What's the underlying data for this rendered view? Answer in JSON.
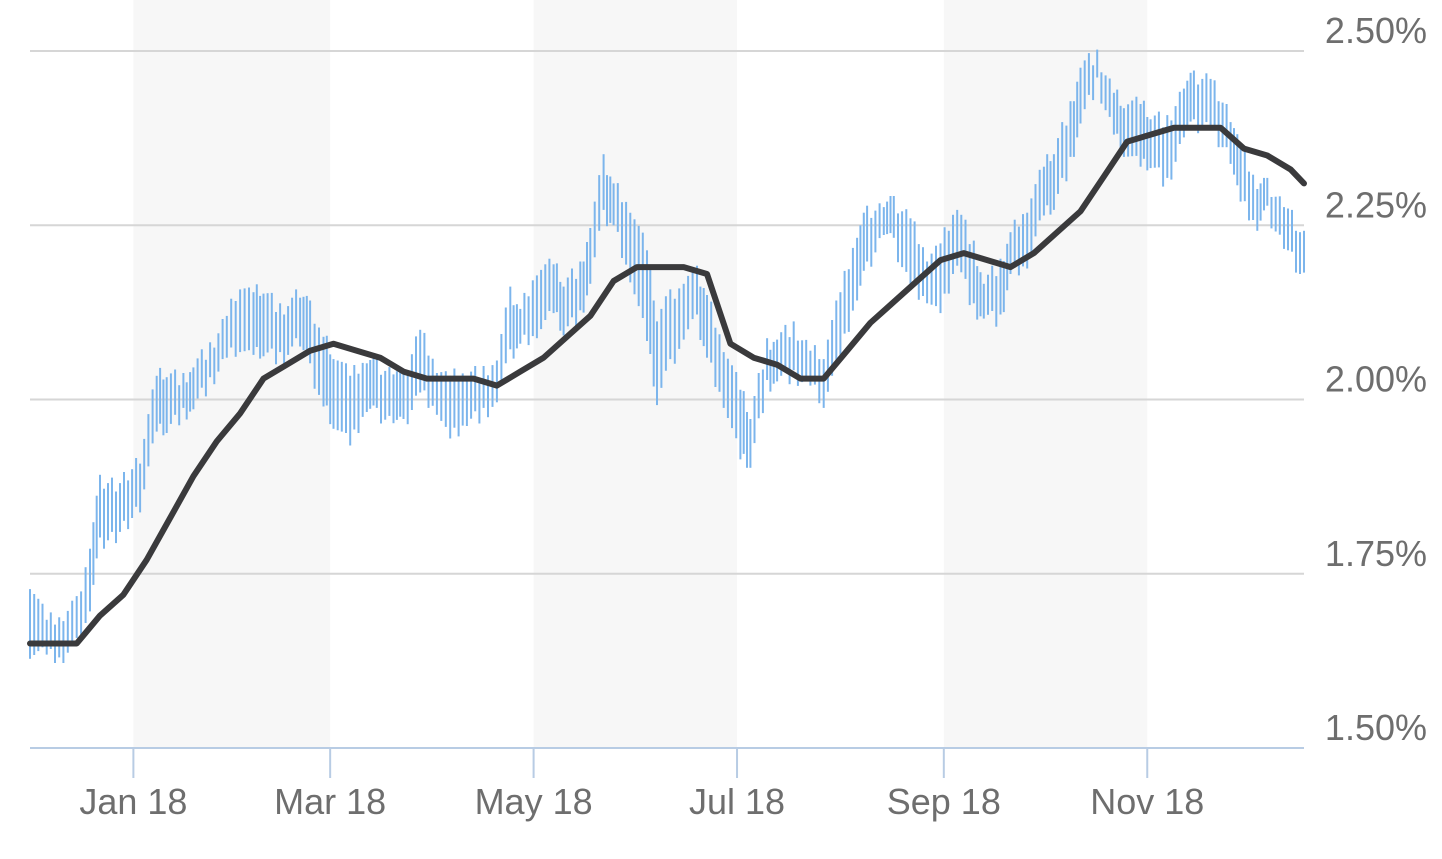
{
  "chart_data": {
    "type": "line",
    "xlabel": "",
    "ylabel": "",
    "x_range": [
      "2017-12-01",
      "2018-12-18"
    ],
    "ylim": [
      1.5,
      2.5
    ],
    "y_ticks": [
      {
        "value": 2.5,
        "label": "2.50%"
      },
      {
        "value": 2.25,
        "label": "2.25%"
      },
      {
        "value": 2.0,
        "label": "2.00%"
      },
      {
        "value": 1.75,
        "label": "1.75%"
      },
      {
        "value": 1.5,
        "label": "1.50%"
      }
    ],
    "x_ticks": [
      {
        "date": "2018-01-01",
        "label": "Jan 18"
      },
      {
        "date": "2018-03-01",
        "label": "Mar 18"
      },
      {
        "date": "2018-05-01",
        "label": "May 18"
      },
      {
        "date": "2018-07-01",
        "label": "Jul 18"
      },
      {
        "date": "2018-09-01",
        "label": "Sep 18"
      },
      {
        "date": "2018-11-01",
        "label": "Nov 18"
      }
    ],
    "shaded_bands": [
      {
        "start": "2018-01-01",
        "end": "2018-03-01"
      },
      {
        "start": "2018-05-01",
        "end": "2018-07-01"
      },
      {
        "start": "2018-09-01",
        "end": "2018-11-01"
      }
    ],
    "grid": true,
    "series": [
      {
        "kind": "daily-range",
        "color": "#7cb5ec",
        "points": [
          [
            "2017-12-01",
            1.64,
            1.74
          ],
          [
            "2017-12-06",
            1.63,
            1.68
          ],
          [
            "2017-12-11",
            1.63,
            1.69
          ],
          [
            "2017-12-15",
            1.65,
            1.71
          ],
          [
            "2017-12-19",
            1.7,
            1.79
          ],
          [
            "2017-12-22",
            1.79,
            1.88
          ],
          [
            "2017-12-28",
            1.81,
            1.88
          ],
          [
            "2018-01-03",
            1.85,
            1.92
          ],
          [
            "2018-01-08",
            1.95,
            2.03
          ],
          [
            "2018-01-11",
            1.96,
            2.04
          ],
          [
            "2018-01-16",
            1.98,
            2.03
          ],
          [
            "2018-01-19",
            1.99,
            2.05
          ],
          [
            "2018-01-24",
            2.02,
            2.07
          ],
          [
            "2018-01-29",
            2.06,
            2.12
          ],
          [
            "2018-02-02",
            2.08,
            2.17
          ],
          [
            "2018-02-06",
            2.06,
            2.15
          ],
          [
            "2018-02-09",
            2.07,
            2.16
          ],
          [
            "2018-02-14",
            2.06,
            2.13
          ],
          [
            "2018-02-20",
            2.08,
            2.15
          ],
          [
            "2018-02-23",
            2.04,
            2.13
          ],
          [
            "2018-02-27",
            1.99,
            2.09
          ],
          [
            "2018-03-02",
            1.97,
            2.07
          ],
          [
            "2018-03-07",
            1.93,
            2.03
          ],
          [
            "2018-03-12",
            1.99,
            2.06
          ],
          [
            "2018-03-15",
            1.98,
            2.05
          ],
          [
            "2018-03-20",
            1.97,
            2.04
          ],
          [
            "2018-03-23",
            1.96,
            2.03
          ],
          [
            "2018-03-28",
            2.01,
            2.1
          ],
          [
            "2018-04-02",
            1.99,
            2.05
          ],
          [
            "2018-04-06",
            1.94,
            2.03
          ],
          [
            "2018-04-11",
            1.97,
            2.04
          ],
          [
            "2018-04-16",
            1.98,
            2.04
          ],
          [
            "2018-04-20",
            2.0,
            2.06
          ],
          [
            "2018-04-24",
            2.06,
            2.15
          ],
          [
            "2018-04-27",
            2.08,
            2.13
          ],
          [
            "2018-05-02",
            2.1,
            2.19
          ],
          [
            "2018-05-07",
            2.12,
            2.19
          ],
          [
            "2018-05-10",
            2.1,
            2.17
          ],
          [
            "2018-05-15",
            2.12,
            2.19
          ],
          [
            "2018-05-18",
            2.17,
            2.25
          ],
          [
            "2018-05-22",
            2.26,
            2.34
          ],
          [
            "2018-05-25",
            2.25,
            2.31
          ],
          [
            "2018-05-30",
            2.18,
            2.28
          ],
          [
            "2018-06-04",
            2.08,
            2.21
          ],
          [
            "2018-06-07",
            2.0,
            2.12
          ],
          [
            "2018-06-11",
            2.05,
            2.15
          ],
          [
            "2018-06-15",
            2.09,
            2.17
          ],
          [
            "2018-06-19",
            2.11,
            2.18
          ],
          [
            "2018-06-22",
            2.06,
            2.15
          ],
          [
            "2018-06-27",
            2.0,
            2.08
          ],
          [
            "2018-07-02",
            1.91,
            2.01
          ],
          [
            "2018-07-05",
            1.91,
            1.98
          ],
          [
            "2018-07-10",
            2.02,
            2.08
          ],
          [
            "2018-07-13",
            2.03,
            2.09
          ],
          [
            "2018-07-18",
            2.03,
            2.1
          ],
          [
            "2018-07-23",
            2.02,
            2.07
          ],
          [
            "2018-07-27",
            2.0,
            2.07
          ],
          [
            "2018-08-01",
            2.06,
            2.15
          ],
          [
            "2018-08-06",
            2.15,
            2.24
          ],
          [
            "2018-08-09",
            2.19,
            2.27
          ],
          [
            "2018-08-14",
            2.24,
            2.28
          ],
          [
            "2018-08-17",
            2.22,
            2.28
          ],
          [
            "2018-08-22",
            2.16,
            2.26
          ],
          [
            "2018-08-27",
            2.15,
            2.21
          ],
          [
            "2018-08-31",
            2.12,
            2.22
          ],
          [
            "2018-09-05",
            2.2,
            2.28
          ],
          [
            "2018-09-10",
            2.13,
            2.22
          ],
          [
            "2018-09-13",
            2.12,
            2.17
          ],
          [
            "2018-09-18",
            2.11,
            2.19
          ],
          [
            "2018-09-21",
            2.18,
            2.24
          ],
          [
            "2018-09-26",
            2.2,
            2.28
          ],
          [
            "2018-10-01",
            2.26,
            2.33
          ],
          [
            "2018-10-04",
            2.28,
            2.36
          ],
          [
            "2018-10-09",
            2.34,
            2.42
          ],
          [
            "2018-10-12",
            2.4,
            2.48
          ],
          [
            "2018-10-17",
            2.45,
            2.49
          ],
          [
            "2018-10-22",
            2.38,
            2.44
          ],
          [
            "2018-10-25",
            2.36,
            2.43
          ],
          [
            "2018-10-30",
            2.33,
            2.42
          ],
          [
            "2018-11-02",
            2.34,
            2.41
          ],
          [
            "2018-11-07",
            2.31,
            2.4
          ],
          [
            "2018-11-12",
            2.38,
            2.45
          ],
          [
            "2018-11-15",
            2.39,
            2.46
          ],
          [
            "2018-11-20",
            2.39,
            2.46
          ],
          [
            "2018-11-26",
            2.35,
            2.41
          ],
          [
            "2018-11-29",
            2.28,
            2.36
          ],
          [
            "2018-12-04",
            2.25,
            2.31
          ],
          [
            "2018-12-07",
            2.27,
            2.31
          ],
          [
            "2018-12-12",
            2.22,
            2.28
          ],
          [
            "2018-12-18",
            2.17,
            2.23
          ]
        ]
      },
      {
        "kind": "moving-average",
        "color": "#3a3a3c",
        "points": [
          [
            "2017-12-01",
            1.65
          ],
          [
            "2017-12-08",
            1.65
          ],
          [
            "2017-12-15",
            1.65
          ],
          [
            "2017-12-22",
            1.69
          ],
          [
            "2017-12-29",
            1.72
          ],
          [
            "2018-01-05",
            1.77
          ],
          [
            "2018-01-12",
            1.83
          ],
          [
            "2018-01-19",
            1.89
          ],
          [
            "2018-01-26",
            1.94
          ],
          [
            "2018-02-02",
            1.98
          ],
          [
            "2018-02-09",
            2.03
          ],
          [
            "2018-02-16",
            2.05
          ],
          [
            "2018-02-23",
            2.07
          ],
          [
            "2018-03-02",
            2.08
          ],
          [
            "2018-03-09",
            2.07
          ],
          [
            "2018-03-16",
            2.06
          ],
          [
            "2018-03-23",
            2.04
          ],
          [
            "2018-03-30",
            2.03
          ],
          [
            "2018-04-06",
            2.03
          ],
          [
            "2018-04-13",
            2.03
          ],
          [
            "2018-04-20",
            2.02
          ],
          [
            "2018-04-27",
            2.04
          ],
          [
            "2018-05-04",
            2.06
          ],
          [
            "2018-05-11",
            2.09
          ],
          [
            "2018-05-18",
            2.12
          ],
          [
            "2018-05-25",
            2.17
          ],
          [
            "2018-06-01",
            2.19
          ],
          [
            "2018-06-08",
            2.19
          ],
          [
            "2018-06-15",
            2.19
          ],
          [
            "2018-06-22",
            2.18
          ],
          [
            "2018-06-29",
            2.08
          ],
          [
            "2018-07-06",
            2.06
          ],
          [
            "2018-07-13",
            2.05
          ],
          [
            "2018-07-20",
            2.03
          ],
          [
            "2018-07-27",
            2.03
          ],
          [
            "2018-08-03",
            2.07
          ],
          [
            "2018-08-10",
            2.11
          ],
          [
            "2018-08-17",
            2.14
          ],
          [
            "2018-08-24",
            2.17
          ],
          [
            "2018-08-31",
            2.2
          ],
          [
            "2018-09-07",
            2.21
          ],
          [
            "2018-09-14",
            2.2
          ],
          [
            "2018-09-21",
            2.19
          ],
          [
            "2018-09-28",
            2.21
          ],
          [
            "2018-10-05",
            2.24
          ],
          [
            "2018-10-12",
            2.27
          ],
          [
            "2018-10-19",
            2.32
          ],
          [
            "2018-10-26",
            2.37
          ],
          [
            "2018-11-02",
            2.38
          ],
          [
            "2018-11-09",
            2.39
          ],
          [
            "2018-11-16",
            2.39
          ],
          [
            "2018-11-23",
            2.39
          ],
          [
            "2018-11-30",
            2.36
          ],
          [
            "2018-12-07",
            2.35
          ],
          [
            "2018-12-14",
            2.33
          ],
          [
            "2018-12-18",
            2.31
          ]
        ]
      }
    ],
    "colors": {
      "grid": "#d6d6d6",
      "axis": "#b8cce4",
      "band": "#f7f7f7",
      "label": "#6e6e6e"
    }
  }
}
